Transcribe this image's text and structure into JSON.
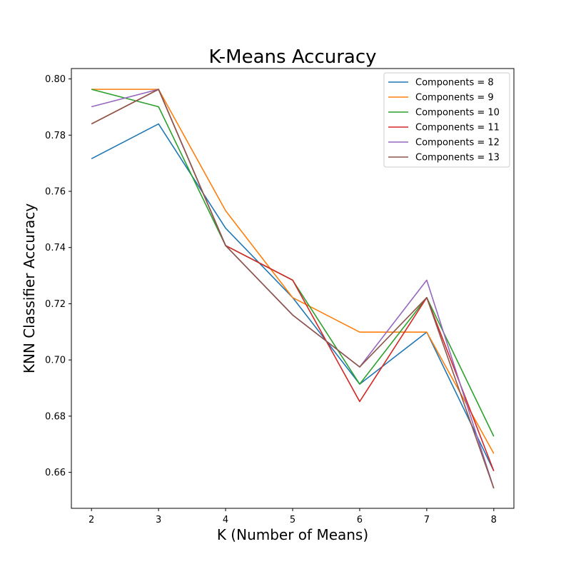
{
  "chart_data": {
    "type": "line",
    "title": "K-Means Accuracy",
    "xlabel": "K (Number of Means)",
    "ylabel": "KNN Classifier Accuracy",
    "x": [
      2,
      3,
      4,
      5,
      6,
      7,
      8
    ],
    "xlim": [
      1.7,
      8.3
    ],
    "ylim": [
      0.6472,
      0.8037
    ],
    "xticks": [
      2,
      3,
      4,
      5,
      6,
      7,
      8
    ],
    "yticks": [
      0.66,
      0.68,
      0.7,
      0.72,
      0.74,
      0.76,
      0.78,
      0.8
    ],
    "ytick_labels": [
      "0.66",
      "0.68",
      "0.70",
      "0.72",
      "0.74",
      "0.76",
      "0.78",
      "0.80"
    ],
    "grid": false,
    "legend_position": "top-right",
    "series": [
      {
        "name": "Components = 8",
        "color": "#1f77b4",
        "values": [
          0.7716,
          0.784,
          0.7469,
          0.7222,
          0.6914,
          0.7099,
          0.6605
        ]
      },
      {
        "name": "Components = 9",
        "color": "#ff7f0e",
        "values": [
          0.7963,
          0.7963,
          0.7531,
          0.7222,
          0.7099,
          0.7099,
          0.6667
        ]
      },
      {
        "name": "Components = 10",
        "color": "#2ca02c",
        "values": [
          0.7963,
          0.7901,
          0.7407,
          0.7284,
          0.6914,
          0.7222,
          0.6728
        ]
      },
      {
        "name": "Components = 11",
        "color": "#d62728",
        "values": [
          0.784,
          0.7963,
          0.7407,
          0.7284,
          0.6852,
          0.7222,
          0.6605
        ]
      },
      {
        "name": "Components = 12",
        "color": "#9467bd",
        "values": [
          0.7901,
          0.7963,
          0.7407,
          0.716,
          0.6975,
          0.7284,
          0.6543
        ]
      },
      {
        "name": "Components = 13",
        "color": "#8c564b",
        "values": [
          0.784,
          0.7963,
          0.7407,
          0.716,
          0.6975,
          0.7222,
          0.6543
        ]
      }
    ]
  }
}
